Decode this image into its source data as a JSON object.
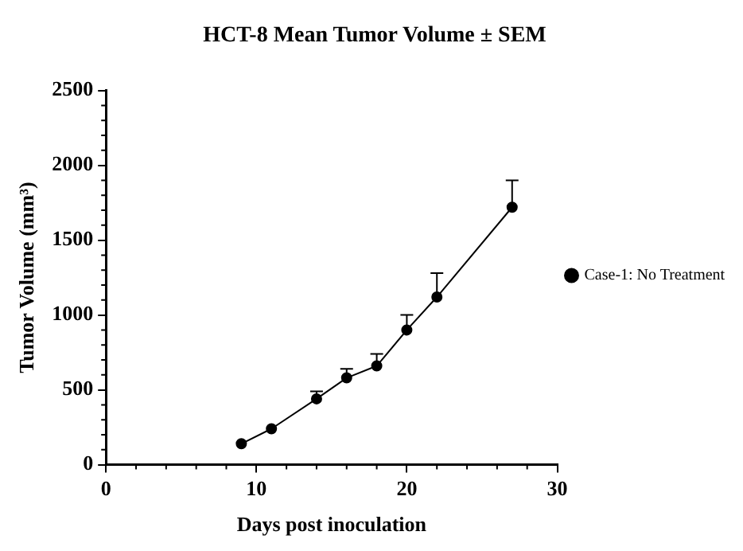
{
  "chart_data": {
    "type": "line",
    "title": "HCT-8 Mean Tumor Volume ± SEM",
    "xlabel": "Days post inoculation",
    "ylabel": "Tumor Volume (mm³)",
    "x": [
      9,
      11,
      14,
      16,
      18,
      20,
      22,
      27
    ],
    "series": [
      {
        "name": "Case-1: No Treatment",
        "color": "#000000",
        "values": [
          140,
          240,
          440,
          580,
          660,
          900,
          1120,
          1720
        ],
        "errors": [
          null,
          null,
          [
            440,
            490
          ],
          [
            580,
            640
          ],
          [
            660,
            740
          ],
          [
            900,
            1000
          ],
          [
            1120,
            1280
          ],
          [
            1720,
            1900
          ]
        ]
      }
    ],
    "xlim": [
      0,
      30
    ],
    "xticks": [
      0,
      10,
      20,
      30
    ],
    "ylim": [
      0,
      2500
    ],
    "yticks": [
      0,
      500,
      1000,
      1500,
      2000,
      2500
    ],
    "grid": false,
    "legend": "right",
    "marker": "circle",
    "line_style": "solid"
  }
}
